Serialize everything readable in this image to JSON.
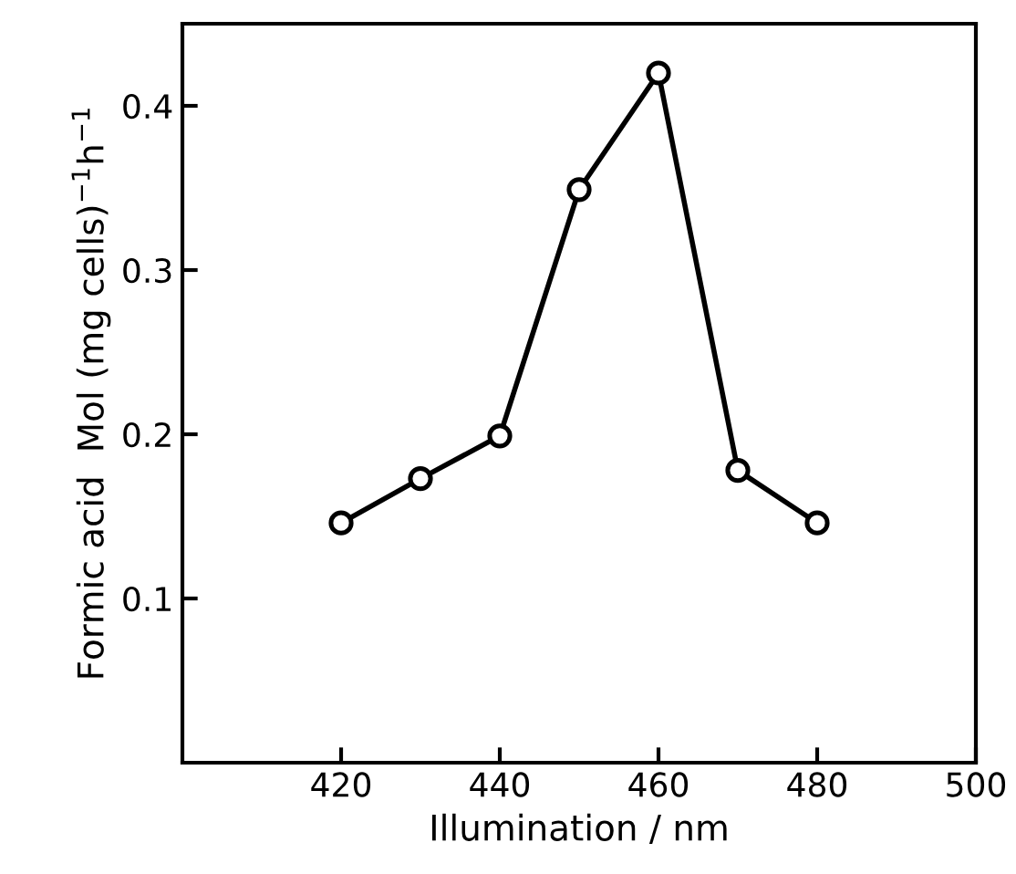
{
  "chart_data": {
    "type": "line",
    "xlabel": "Illumination / nm",
    "ylabel": "Formic acid  Mol (mg cells)$^{−1}$h$^{−1}$",
    "x": [
      420,
      430,
      440,
      450,
      460,
      470,
      480
    ],
    "series": [
      {
        "color": "#000000",
        "values": [
          0.146,
          0.173,
          0.199,
          0.349,
          0.42,
          0.178,
          0.146
        ]
      }
    ],
    "xlim": [
      400,
      500
    ],
    "ylim": [
      0,
      0.45
    ],
    "xticks": [
      420,
      440,
      460,
      480,
      500
    ],
    "yticks": [
      0.1,
      0.2,
      0.3,
      0.4
    ],
    "marker": "circle",
    "line_style": "solid",
    "grid": false,
    "legend": false
  }
}
